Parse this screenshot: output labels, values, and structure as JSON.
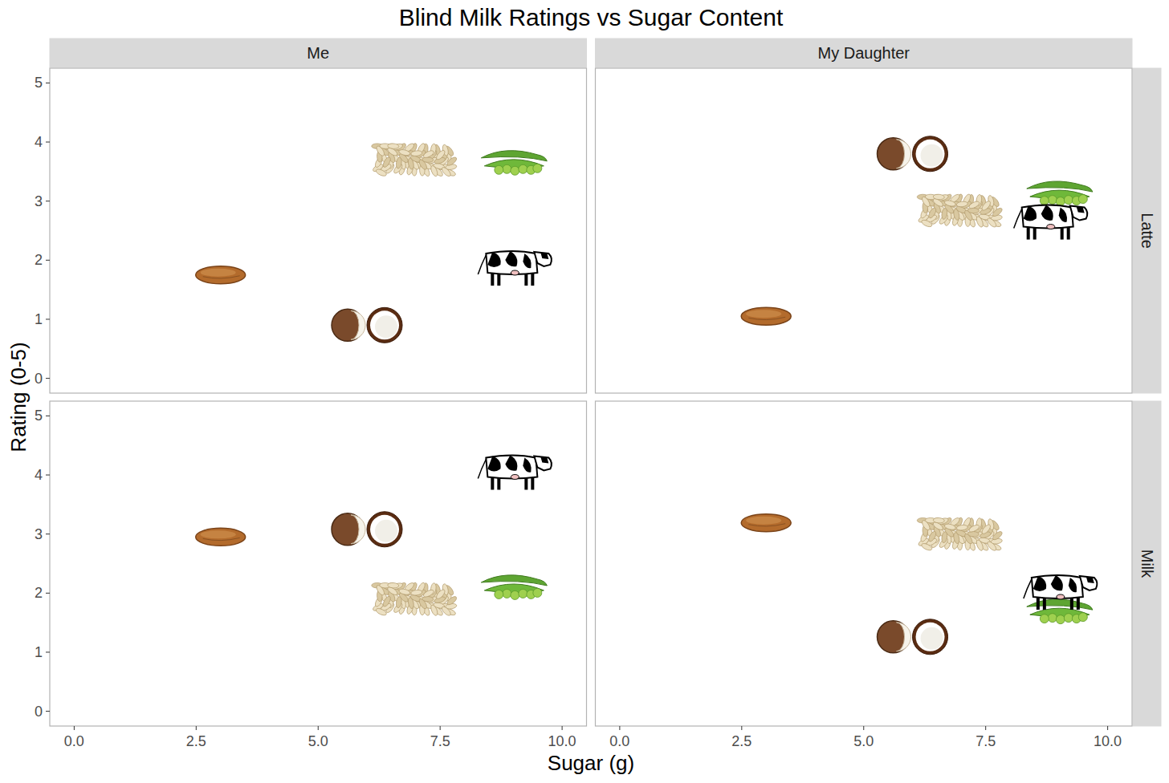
{
  "chart_data": {
    "type": "scatter",
    "title": "Blind Milk Ratings vs Sugar Content",
    "x_label": "Sugar (g)",
    "y_label": "Rating (0-5)",
    "xlim": [
      -0.5,
      10.5
    ],
    "ylim": [
      -0.25,
      5.25
    ],
    "xticks": [
      {
        "value": 0,
        "label": "0.0"
      },
      {
        "value": 2.5,
        "label": "2.5"
      },
      {
        "value": 5,
        "label": "5.0"
      },
      {
        "value": 7.5,
        "label": "7.5"
      },
      {
        "value": 10,
        "label": "10.0"
      }
    ],
    "yticks": [
      0,
      1,
      2,
      3,
      4,
      5
    ],
    "grid": false,
    "columns": [
      "Me",
      "My Daughter"
    ],
    "rows": [
      "Latte",
      "Milk"
    ],
    "panels": [
      [
        {
          "series": [
            {
              "marker": "almond",
              "x": [
                3.0
              ],
              "values": [
                1.75
              ]
            },
            {
              "marker": "coconut",
              "x": [
                6.0
              ],
              "values": [
                0.9
              ]
            },
            {
              "marker": "oat",
              "x": [
                7.0
              ],
              "values": [
                3.7
              ]
            },
            {
              "marker": "soy",
              "x": [
                9.0
              ],
              "values": [
                3.65
              ]
            },
            {
              "marker": "cow",
              "x": [
                9.0
              ],
              "values": [
                1.95
              ]
            }
          ]
        },
        {
          "series": [
            {
              "marker": "almond",
              "x": [
                3.0
              ],
              "values": [
                1.05
              ]
            },
            {
              "marker": "coconut",
              "x": [
                6.0
              ],
              "values": [
                3.8
              ]
            },
            {
              "marker": "oat",
              "x": [
                7.0
              ],
              "values": [
                2.84
              ]
            },
            {
              "marker": "soy",
              "x": [
                9.0
              ],
              "values": [
                3.13
              ]
            },
            {
              "marker": "cow",
              "x": [
                8.8
              ],
              "values": [
                2.73
              ]
            }
          ]
        }
      ],
      [
        {
          "series": [
            {
              "marker": "almond",
              "x": [
                3.0
              ],
              "values": [
                2.95
              ]
            },
            {
              "marker": "coconut",
              "x": [
                6.0
              ],
              "values": [
                3.08
              ]
            },
            {
              "marker": "oat",
              "x": [
                7.0
              ],
              "values": [
                1.9
              ]
            },
            {
              "marker": "soy",
              "x": [
                9.0
              ],
              "values": [
                2.1
              ]
            },
            {
              "marker": "cow",
              "x": [
                9.0
              ],
              "values": [
                4.13
              ]
            }
          ]
        },
        {
          "series": [
            {
              "marker": "almond",
              "x": [
                3.0
              ],
              "values": [
                3.19
              ]
            },
            {
              "marker": "coconut",
              "x": [
                6.0
              ],
              "values": [
                1.26
              ]
            },
            {
              "marker": "oat",
              "x": [
                7.0
              ],
              "values": [
                3.0
              ]
            },
            {
              "marker": "soy",
              "x": [
                9.0
              ],
              "values": [
                1.69
              ]
            },
            {
              "marker": "cow",
              "x": [
                9.0
              ],
              "values": [
                2.1
              ]
            }
          ]
        }
      ]
    ]
  }
}
